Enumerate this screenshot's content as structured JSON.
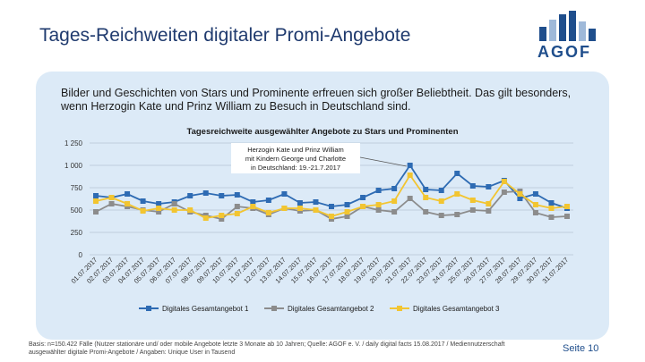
{
  "page": {
    "title": "Tages-Reichweiten digitaler Promi-Angebote",
    "logo_text": "AGOF",
    "intro": "Bilder und Geschichten von Stars und Prominente erfreuen sich großer Beliebtheit. Das gilt besonders, wenn Herzogin Kate und Prinz William zu Besuch in Deutschland sind.",
    "footnote": "Basis: n=150.422 Fälle (Nutzer stationäre und/ oder mobile Angebote letzte 3 Monate ab 10 Jahren; Quelle: AGOF e. V. / daily digital facts 15.08.2017 / Mediennutzerschaft ausgewählter digitale Promi-Angebote / Angaben: Unique User in Tausend",
    "page_number": "Seite 10"
  },
  "colors": {
    "series1": "#2e6bb3",
    "series2": "#8c8c8c",
    "series3": "#f2c531",
    "logo_blue": "#1f4e8c",
    "logo_light": "#9fb9d9"
  },
  "chart_data": {
    "type": "line",
    "title": "Tagesreichweite ausgewählter Angebote zu Stars und Prominenten",
    "annotation": "Herzogin Kate und Prinz William mit Kindern George und Charlotte in Deutschland: 19.-21.7.2017",
    "categories": [
      "01.07.2017",
      "02.07.2017",
      "03.07.2017",
      "04.07.2017",
      "05.07.2017",
      "06.07.2017",
      "07.07.2017",
      "08.07.2017",
      "09.07.2017",
      "10.07.2017",
      "11.07.2017",
      "12.07.2017",
      "13.07.2017",
      "14.07.2017",
      "15.07.2017",
      "16.07.2017",
      "17.07.2017",
      "18.07.2017",
      "19.07.2017",
      "20.07.2017",
      "21.07.2017",
      "22.07.2017",
      "23.07.2017",
      "24.07.2017",
      "25.07.2017",
      "26.07.2017",
      "27.07.2017",
      "28.07.2017",
      "29.07.2017",
      "30.07.2017",
      "31.07.2017"
    ],
    "y_tick_labels": [
      "0",
      "250",
      "500",
      "750",
      "1 000",
      "1 250"
    ],
    "ylim": [
      0,
      1250
    ],
    "series": [
      {
        "name": "Digitales Gesamtangebot 1",
        "values": [
          660,
          640,
          680,
          600,
          570,
          590,
          660,
          690,
          660,
          670,
          590,
          610,
          680,
          580,
          590,
          540,
          560,
          640,
          720,
          740,
          1000,
          730,
          720,
          910,
          770,
          760,
          830,
          630,
          680,
          580,
          520
        ]
      },
      {
        "name": "Digitales Gesamtangebot 2",
        "values": [
          480,
          570,
          540,
          500,
          480,
          570,
          480,
          440,
          400,
          540,
          520,
          450,
          520,
          490,
          500,
          400,
          430,
          540,
          500,
          480,
          630,
          480,
          440,
          450,
          500,
          490,
          700,
          710,
          470,
          420,
          430
        ]
      },
      {
        "name": "Digitales Gesamtangebot 3",
        "values": [
          600,
          640,
          570,
          490,
          520,
          500,
          500,
          410,
          440,
          460,
          540,
          470,
          520,
          520,
          500,
          430,
          480,
          540,
          560,
          600,
          890,
          640,
          600,
          680,
          610,
          570,
          820,
          680,
          560,
          520,
          540
        ]
      }
    ],
    "legend_position": "bottom",
    "grid": true
  }
}
